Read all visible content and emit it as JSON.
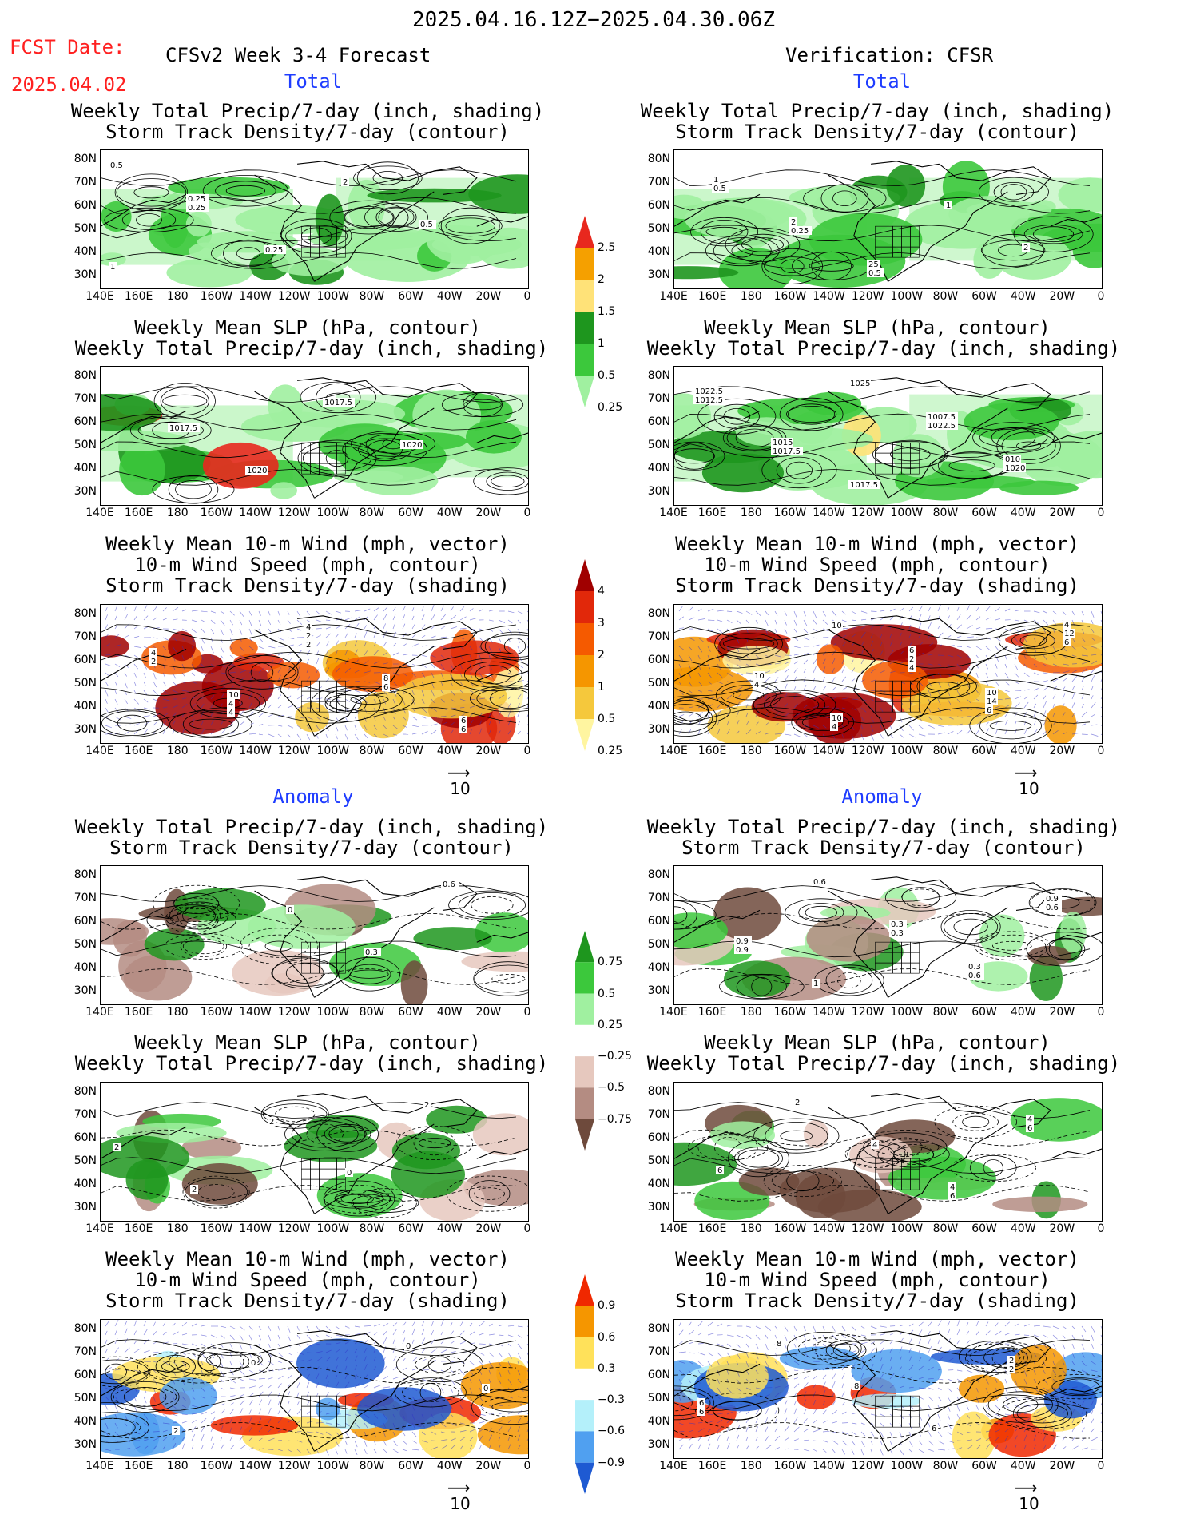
{
  "header": {
    "date_range": "2025.04.16.12Z−2025.04.30.06Z",
    "fcst_label": "FCST Date:",
    "fcst_date": "2025.04.02",
    "left_title": "CFSv2 Week 3-4 Forecast",
    "right_title": "Verification: CFSR"
  },
  "sections": {
    "total": "Total",
    "anomaly": "Anomaly"
  },
  "panel_titles": {
    "precip_storm": [
      "Weekly Total Precip/7-day (inch, shading)",
      "Storm Track Density/7-day (contour)"
    ],
    "slp_precip": [
      "Weekly Mean SLP (hPa, contour)",
      "Weekly Total Precip/7-day (inch, shading)"
    ],
    "wind_storm": [
      "Weekly Mean 10-m Wind (mph, vector)",
      "10-m Wind Speed (mph, contour)",
      "Storm Track Density/7-day (shading)"
    ]
  },
  "axes": {
    "lat_ticks": [
      "80N",
      "70N",
      "60N",
      "50N",
      "40N",
      "30N"
    ],
    "lon_ticks": [
      "140E",
      "160E",
      "180",
      "160W",
      "140W",
      "120W",
      "100W",
      "80W",
      "60W",
      "40W",
      "20W",
      "0"
    ]
  },
  "vector_reference": {
    "label": "10"
  },
  "colorbars": {
    "precip_total": {
      "labels": [
        "2.5",
        "2",
        "1.5",
        "1",
        "0.5",
        "0.25"
      ],
      "colors": [
        "#e8281e",
        "#f5a000",
        "#ffe278",
        "#1e961e",
        "#3cc83c",
        "#a0f0a0"
      ]
    },
    "storm_total": {
      "labels": [
        "4",
        "3",
        "2",
        "1",
        "0.5",
        "0.25"
      ],
      "colors": [
        "#a00000",
        "#e1280a",
        "#f55a00",
        "#f59600",
        "#f5c83c",
        "#fff5a0"
      ]
    },
    "precip_anom": {
      "labels": [
        "0.75",
        "0.5",
        "0.25",
        "−0.25",
        "−0.5",
        "−0.75"
      ],
      "colors": [
        "#1e961e",
        "#3cc83c",
        "#a0f0a0",
        "#ffffff",
        "#e6c8be",
        "#b48c82",
        "#6e4a3c"
      ]
    },
    "storm_anom": {
      "labels": [
        "0.9",
        "0.6",
        "0.3",
        "−0.3",
        "−0.6",
        "−0.9"
      ],
      "colors": [
        "#f02800",
        "#f59600",
        "#ffe15a",
        "#ffffff",
        "#b4f0fa",
        "#50a0f0",
        "#1e5ad2"
      ]
    }
  },
  "contour_labels": {
    "p1l": [
      "0.5",
      "0.25",
      "0.25",
      "2",
      "0.5",
      "1",
      "0.25"
    ],
    "p1r": [
      "0.5",
      "0.25",
      "0.5",
      "1",
      "2",
      "1",
      "2",
      "25"
    ],
    "p2l": [
      "1017.5",
      "1020",
      "1017.5",
      "1020"
    ],
    "p2r": [
      "1017.5",
      "1025",
      "1022.5",
      "1020",
      "1012.5",
      "1015",
      "1017.5",
      "1007.5",
      "010",
      "1022.5"
    ],
    "p3l": [
      "4",
      "2",
      "6",
      "6",
      "2",
      "4",
      "2",
      "8",
      "6",
      "4",
      "10",
      "4"
    ],
    "p3r": [
      "10",
      "4",
      "6",
      "6",
      "4",
      "4",
      "2",
      "14",
      "12",
      "10",
      "10",
      "6",
      "10",
      "4"
    ],
    "p4l": [
      "0",
      "0.3",
      "0.6"
    ],
    "p4r": [
      "0.3",
      "0.6",
      "0.6",
      "0.9",
      "0.6",
      "0.3",
      "0.3",
      "0.9",
      "0.9",
      "1"
    ],
    "p5l": [
      "0",
      "2",
      "2",
      "2",
      "2"
    ],
    "p5r": [
      "6",
      "6",
      "6",
      "2",
      "4",
      "4",
      "4"
    ],
    "p6l": [
      "0",
      "0",
      "2",
      "0"
    ],
    "p6r": [
      "2",
      "6",
      "8",
      "8",
      "6",
      "2",
      "6"
    ]
  }
}
